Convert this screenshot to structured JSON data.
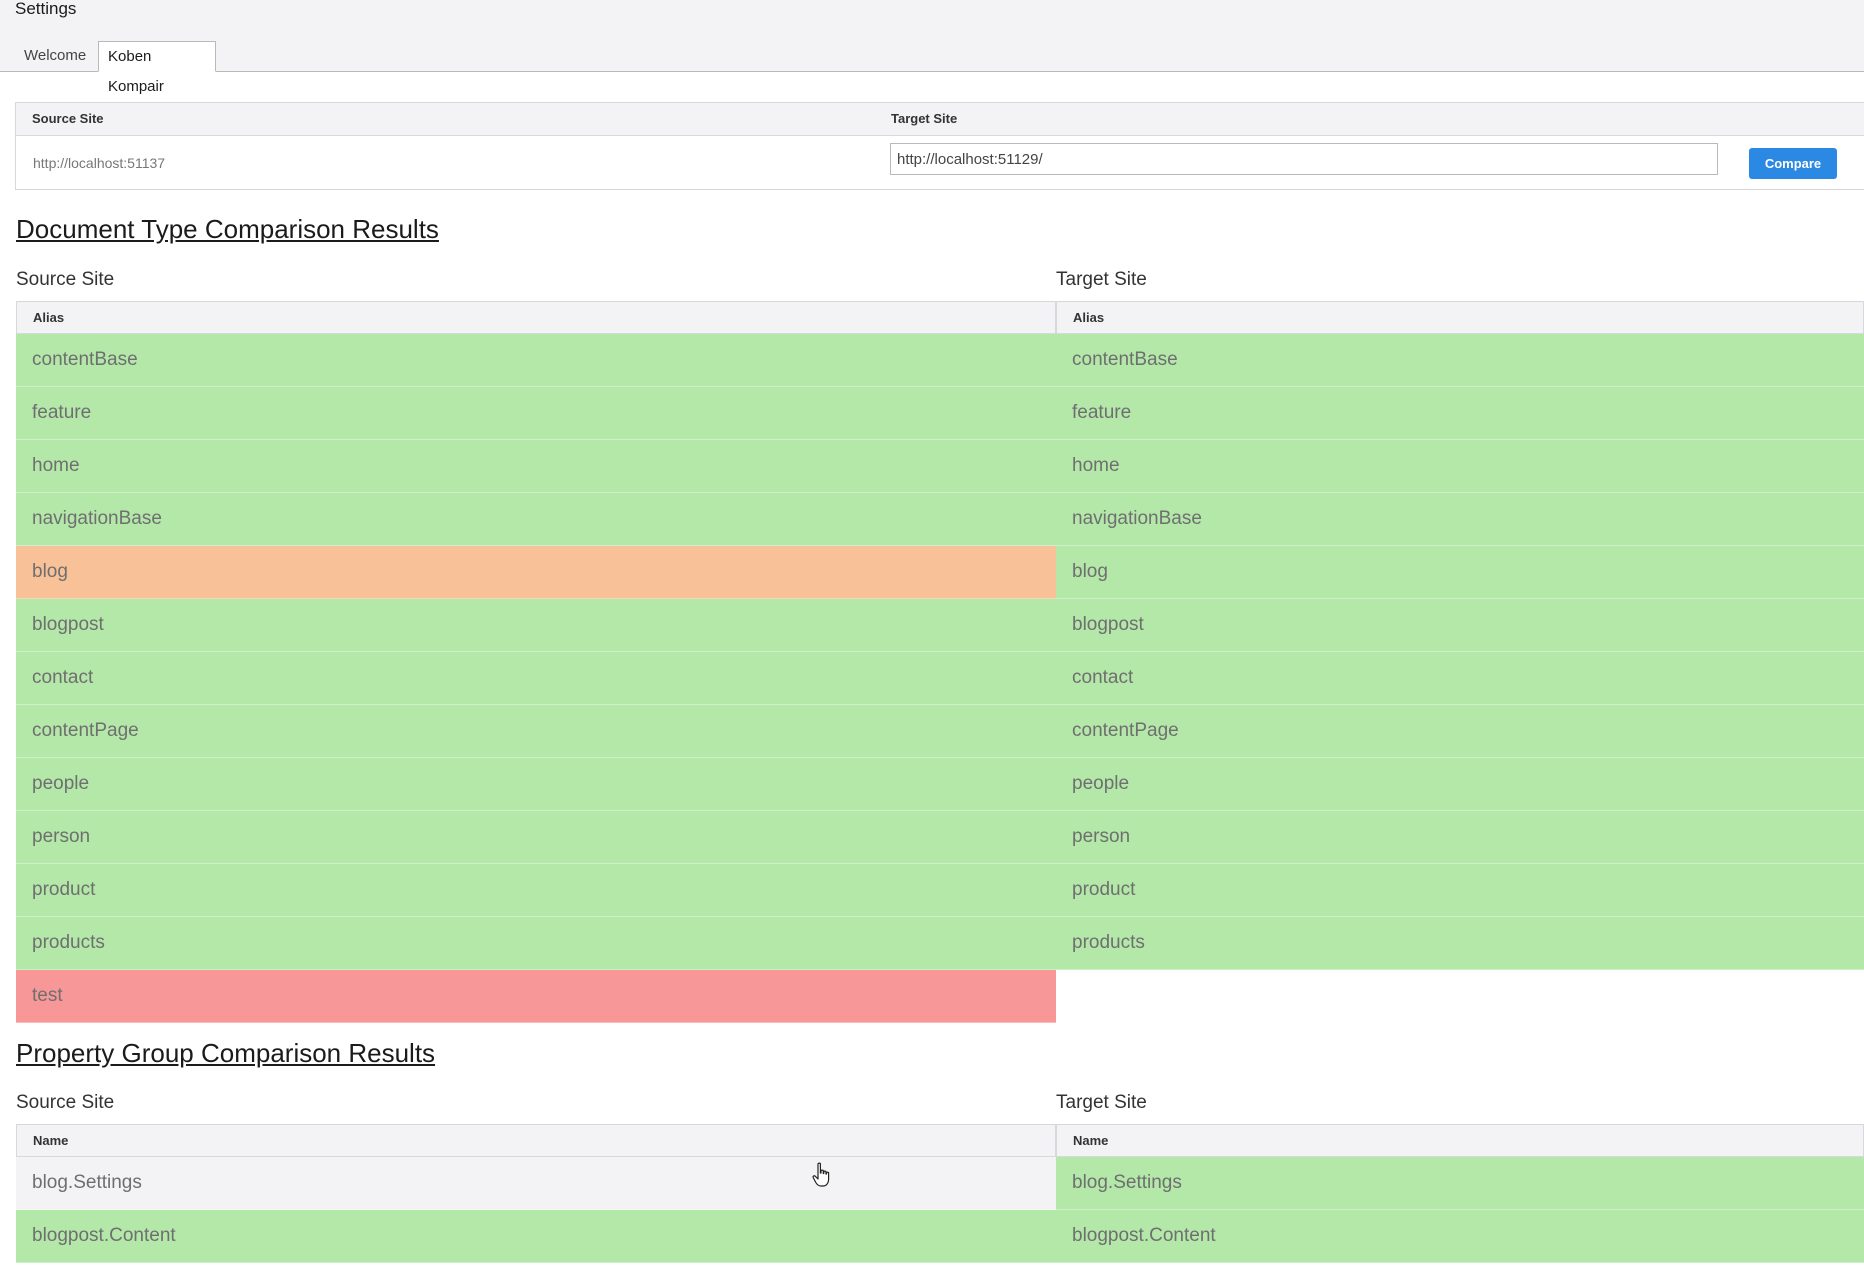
{
  "header": {
    "title": "Settings",
    "tabs": [
      {
        "label": "Welcome",
        "active": false
      },
      {
        "label": "Koben Kompair",
        "active": true
      }
    ]
  },
  "config": {
    "source_header": "Source Site",
    "target_header": "Target Site",
    "source_url": "http://localhost:51137",
    "target_url": "http://localhost:51129/",
    "compare_label": "Compare"
  },
  "doc_types": {
    "title": "Document Type Comparison Results",
    "source_label": "Source Site",
    "target_label": "Target Site",
    "column": "Alias",
    "source_rows": [
      {
        "alias": "contentBase",
        "status": "match"
      },
      {
        "alias": "feature",
        "status": "match"
      },
      {
        "alias": "home",
        "status": "match"
      },
      {
        "alias": "navigationBase",
        "status": "match"
      },
      {
        "alias": "blog",
        "status": "diff"
      },
      {
        "alias": "blogpost",
        "status": "match"
      },
      {
        "alias": "contact",
        "status": "match"
      },
      {
        "alias": "contentPage",
        "status": "match"
      },
      {
        "alias": "people",
        "status": "match"
      },
      {
        "alias": "person",
        "status": "match"
      },
      {
        "alias": "product",
        "status": "match"
      },
      {
        "alias": "products",
        "status": "match"
      },
      {
        "alias": "test",
        "status": "missing"
      }
    ],
    "target_rows": [
      {
        "alias": "contentBase",
        "status": "match"
      },
      {
        "alias": "feature",
        "status": "match"
      },
      {
        "alias": "home",
        "status": "match"
      },
      {
        "alias": "navigationBase",
        "status": "match"
      },
      {
        "alias": "blog",
        "status": "match"
      },
      {
        "alias": "blogpost",
        "status": "match"
      },
      {
        "alias": "contact",
        "status": "match"
      },
      {
        "alias": "contentPage",
        "status": "match"
      },
      {
        "alias": "people",
        "status": "match"
      },
      {
        "alias": "person",
        "status": "match"
      },
      {
        "alias": "product",
        "status": "match"
      },
      {
        "alias": "products",
        "status": "match"
      }
    ]
  },
  "prop_groups": {
    "title": "Property Group Comparison Results",
    "source_label": "Source Site",
    "target_label": "Target Site",
    "column": "Name",
    "source_rows": [
      {
        "name": "blog.Settings",
        "status": "none"
      },
      {
        "name": "blogpost.Content",
        "status": "match"
      }
    ],
    "target_rows": [
      {
        "name": "blog.Settings",
        "status": "match"
      },
      {
        "name": "blogpost.Content",
        "status": "match"
      }
    ]
  },
  "colors": {
    "match": "#b3e8a9",
    "diff": "#f8c197",
    "missing": "#f79797",
    "accent": "#2b88e3"
  },
  "icons": {
    "cursor": "hand-pointer-icon"
  }
}
